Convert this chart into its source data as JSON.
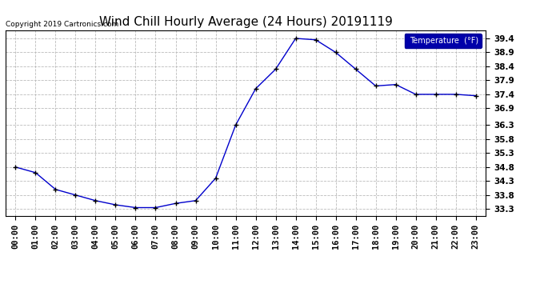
{
  "title": "Wind Chill Hourly Average (24 Hours) 20191119",
  "copyright_text": "Copyright 2019 Cartronics.com",
  "legend_label": "Temperature  (°F)",
  "hours": [
    "00:00",
    "01:00",
    "02:00",
    "03:00",
    "04:00",
    "05:00",
    "06:00",
    "07:00",
    "08:00",
    "09:00",
    "10:00",
    "11:00",
    "12:00",
    "13:00",
    "14:00",
    "15:00",
    "16:00",
    "17:00",
    "18:00",
    "19:00",
    "20:00",
    "21:00",
    "22:00",
    "23:00"
  ],
  "values": [
    34.8,
    34.6,
    34.0,
    33.8,
    33.6,
    33.45,
    33.35,
    33.35,
    33.5,
    33.6,
    34.4,
    36.3,
    37.6,
    38.3,
    39.4,
    39.35,
    38.9,
    38.3,
    37.7,
    37.75,
    37.4,
    37.4,
    37.4,
    37.35
  ],
  "ylim": [
    33.05,
    39.7
  ],
  "yticks": [
    33.3,
    33.8,
    34.3,
    34.8,
    35.3,
    35.8,
    36.3,
    36.9,
    37.4,
    37.9,
    38.4,
    38.9,
    39.4
  ],
  "line_color": "#0000cc",
  "marker": "+",
  "marker_color": "#000000",
  "bg_color": "#ffffff",
  "grid_color": "#bbbbbb",
  "title_fontsize": 11,
  "tick_fontsize": 7.5,
  "copyright_fontsize": 6.5,
  "legend_bg": "#0000aa",
  "legend_fg": "#ffffff",
  "legend_fontsize": 7
}
